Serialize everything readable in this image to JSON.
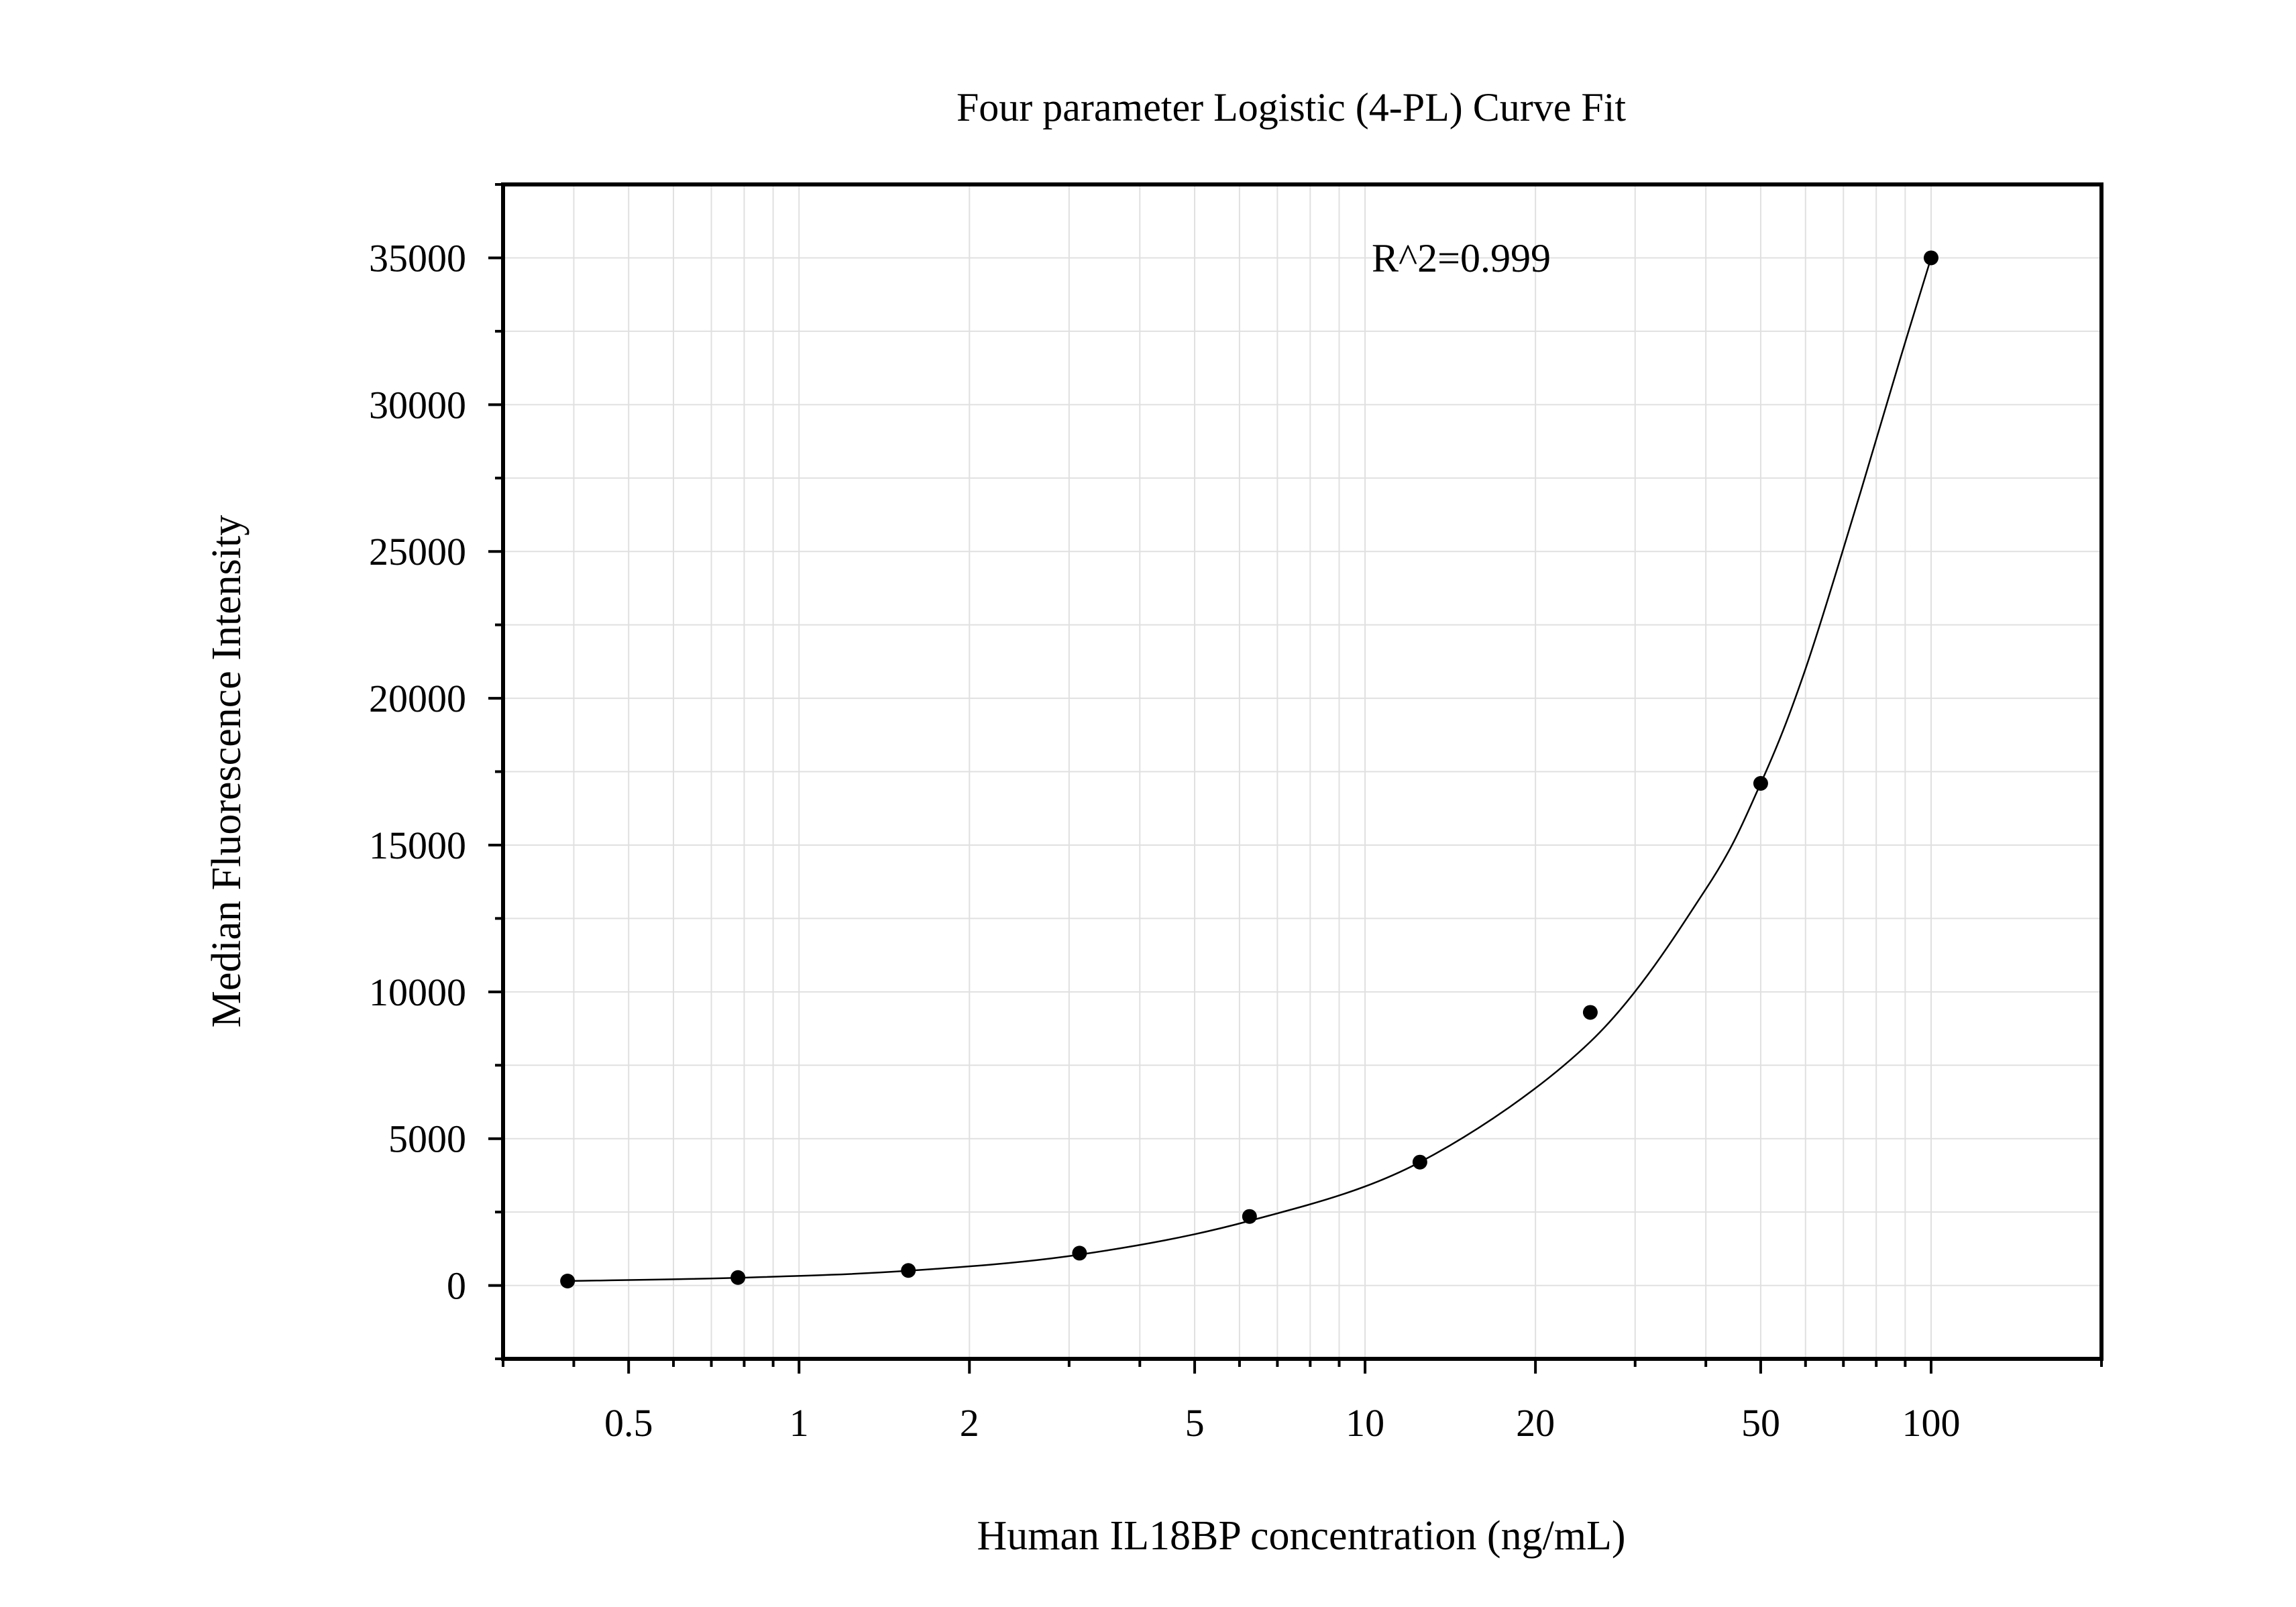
{
  "chart_data": {
    "type": "scatter",
    "title": "Four parameter Logistic (4-PL) Curve Fit",
    "xlabel": "Human IL18BP concentration (ng/mL)",
    "ylabel": "Median Fluorescence Intensity",
    "annotation": "R^2=0.999",
    "x_scale": "log",
    "xlim": [
      0.3,
      200
    ],
    "ylim": [
      -2500,
      37500
    ],
    "x_ticks": [
      0.5,
      1,
      2,
      5,
      10,
      20,
      50,
      100
    ],
    "x_tick_labels": [
      "0.5",
      "1",
      "2",
      "5",
      "10",
      "20",
      "50",
      "100"
    ],
    "y_ticks": [
      0,
      5000,
      10000,
      15000,
      20000,
      25000,
      30000,
      35000
    ],
    "y_tick_labels": [
      "0",
      "5000",
      "10000",
      "15000",
      "20000",
      "25000",
      "30000",
      "35000"
    ],
    "grid": true,
    "series": [
      {
        "type": "scatter",
        "x": [
          0.39,
          0.78,
          1.56,
          3.13,
          6.25,
          12.5,
          25,
          50,
          100
        ],
        "y": [
          150,
          270,
          510,
          1100,
          2350,
          4200,
          9300,
          17100,
          35000
        ]
      }
    ],
    "fit_curve": {
      "type": "line",
      "model": "4PL",
      "x": [
        0.39,
        0.78,
        1.56,
        3.13,
        6.25,
        12.5,
        25,
        40,
        50,
        60,
        75,
        88,
        100
      ],
      "y": [
        150,
        260,
        500,
        1050,
        2200,
        4200,
        8300,
        13500,
        17100,
        21000,
        27000,
        31500,
        35000
      ]
    },
    "colors": {
      "points": "#000000",
      "curve": "#000000",
      "grid": "#e0e0e0",
      "axes": "#000000"
    }
  }
}
